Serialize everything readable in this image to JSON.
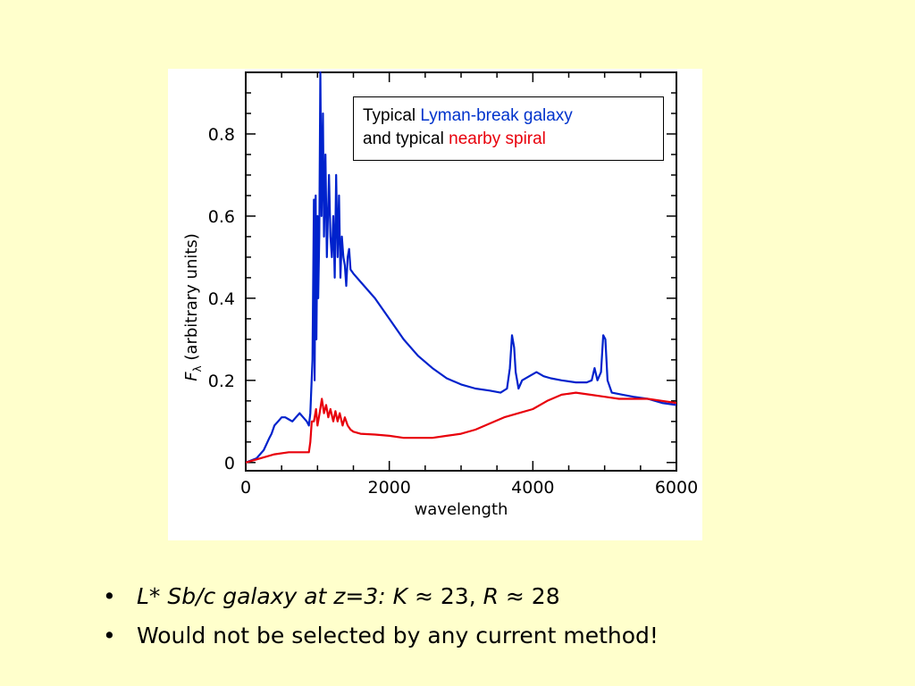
{
  "chart_data": {
    "type": "line",
    "title": "",
    "xlabel": "wavelength",
    "ylabel": "F_λ (arbitrary units)",
    "ylabel_main": "F",
    "ylabel_sub": "λ",
    "ylabel_rest": "(arbitrary units)",
    "xlim": [
      0,
      6000
    ],
    "ylim": [
      -0.02,
      0.95
    ],
    "x_ticks": [
      0,
      2000,
      4000,
      6000
    ],
    "x_tick_labels": [
      "0",
      "2000",
      "4000",
      "6000"
    ],
    "y_ticks": [
      0,
      0.2,
      0.4,
      0.6,
      0.8
    ],
    "y_tick_labels": [
      "0",
      "0.2",
      "0.4",
      "0.6",
      "0.8"
    ],
    "grid": false,
    "legend": {
      "placement": "top-right",
      "line1_prefix": "Typical ",
      "line1_colored": "Lyman-break galaxy",
      "line2_prefix": "and typical ",
      "line2_colored": "nearby spiral"
    },
    "series": [
      {
        "name": "Lyman-break galaxy",
        "color": "#0022cc",
        "points": [
          [
            0,
            0
          ],
          [
            150,
            0.01
          ],
          [
            250,
            0.03
          ],
          [
            330,
            0.06
          ],
          [
            360,
            0.07
          ],
          [
            400,
            0.09
          ],
          [
            450,
            0.1
          ],
          [
            500,
            0.11
          ],
          [
            550,
            0.11
          ],
          [
            600,
            0.105
          ],
          [
            650,
            0.1
          ],
          [
            700,
            0.11
          ],
          [
            750,
            0.12
          ],
          [
            800,
            0.11
          ],
          [
            850,
            0.1
          ],
          [
            880,
            0.09
          ],
          [
            900,
            0.12
          ],
          [
            930,
            0.25
          ],
          [
            950,
            0.64
          ],
          [
            960,
            0.2
          ],
          [
            975,
            0.65
          ],
          [
            985,
            0.3
          ],
          [
            1000,
            0.6
          ],
          [
            1010,
            0.4
          ],
          [
            1025,
            0.55
          ],
          [
            1040,
            0.95
          ],
          [
            1055,
            0.6
          ],
          [
            1075,
            0.85
          ],
          [
            1090,
            0.55
          ],
          [
            1110,
            0.75
          ],
          [
            1130,
            0.5
          ],
          [
            1160,
            0.7
          ],
          [
            1180,
            0.55
          ],
          [
            1200,
            0.5
          ],
          [
            1220,
            0.6
          ],
          [
            1240,
            0.45
          ],
          [
            1260,
            0.7
          ],
          [
            1280,
            0.5
          ],
          [
            1300,
            0.65
          ],
          [
            1320,
            0.45
          ],
          [
            1340,
            0.55
          ],
          [
            1360,
            0.5
          ],
          [
            1380,
            0.48
          ],
          [
            1400,
            0.43
          ],
          [
            1420,
            0.5
          ],
          [
            1440,
            0.52
          ],
          [
            1460,
            0.47
          ],
          [
            1500,
            0.46
          ],
          [
            1600,
            0.44
          ],
          [
            1800,
            0.4
          ],
          [
            2000,
            0.35
          ],
          [
            2200,
            0.3
          ],
          [
            2400,
            0.26
          ],
          [
            2600,
            0.23
          ],
          [
            2800,
            0.205
          ],
          [
            3000,
            0.19
          ],
          [
            3200,
            0.18
          ],
          [
            3400,
            0.175
          ],
          [
            3550,
            0.17
          ],
          [
            3640,
            0.18
          ],
          [
            3680,
            0.23
          ],
          [
            3710,
            0.31
          ],
          [
            3740,
            0.28
          ],
          [
            3760,
            0.22
          ],
          [
            3800,
            0.18
          ],
          [
            3850,
            0.2
          ],
          [
            3950,
            0.21
          ],
          [
            4050,
            0.22
          ],
          [
            4150,
            0.21
          ],
          [
            4250,
            0.205
          ],
          [
            4400,
            0.2
          ],
          [
            4600,
            0.195
          ],
          [
            4750,
            0.195
          ],
          [
            4820,
            0.2
          ],
          [
            4860,
            0.23
          ],
          [
            4900,
            0.2
          ],
          [
            4950,
            0.22
          ],
          [
            4980,
            0.31
          ],
          [
            5010,
            0.3
          ],
          [
            5040,
            0.2
          ],
          [
            5100,
            0.17
          ],
          [
            5250,
            0.165
          ],
          [
            5400,
            0.16
          ],
          [
            5600,
            0.155
          ],
          [
            5800,
            0.145
          ],
          [
            6000,
            0.14
          ]
        ]
      },
      {
        "name": "nearby spiral",
        "color": "#e8000b",
        "points": [
          [
            0,
            0
          ],
          [
            200,
            0.01
          ],
          [
            400,
            0.02
          ],
          [
            600,
            0.025
          ],
          [
            800,
            0.025
          ],
          [
            880,
            0.025
          ],
          [
            900,
            0.05
          ],
          [
            920,
            0.1
          ],
          [
            950,
            0.1
          ],
          [
            980,
            0.13
          ],
          [
            1000,
            0.09
          ],
          [
            1030,
            0.12
          ],
          [
            1060,
            0.155
          ],
          [
            1090,
            0.12
          ],
          [
            1120,
            0.14
          ],
          [
            1150,
            0.11
          ],
          [
            1180,
            0.13
          ],
          [
            1220,
            0.1
          ],
          [
            1250,
            0.125
          ],
          [
            1280,
            0.1
          ],
          [
            1310,
            0.12
          ],
          [
            1350,
            0.09
          ],
          [
            1380,
            0.11
          ],
          [
            1420,
            0.09
          ],
          [
            1460,
            0.08
          ],
          [
            1500,
            0.075
          ],
          [
            1600,
            0.07
          ],
          [
            1800,
            0.068
          ],
          [
            2000,
            0.065
          ],
          [
            2200,
            0.06
          ],
          [
            2400,
            0.06
          ],
          [
            2600,
            0.06
          ],
          [
            2800,
            0.065
          ],
          [
            3000,
            0.07
          ],
          [
            3200,
            0.08
          ],
          [
            3400,
            0.095
          ],
          [
            3600,
            0.11
          ],
          [
            3800,
            0.12
          ],
          [
            4000,
            0.13
          ],
          [
            4200,
            0.15
          ],
          [
            4400,
            0.165
          ],
          [
            4600,
            0.17
          ],
          [
            4800,
            0.165
          ],
          [
            5000,
            0.16
          ],
          [
            5200,
            0.155
          ],
          [
            5400,
            0.155
          ],
          [
            5600,
            0.155
          ],
          [
            5800,
            0.15
          ],
          [
            6000,
            0.145
          ]
        ]
      }
    ]
  },
  "bullets": {
    "marker": "•",
    "item1": {
      "prefix": "L* Sb/c galaxy at z=3: ",
      "k": "K",
      "k_value": " ≈ 23, ",
      "r": "R",
      "r_value": "  ≈ 28"
    },
    "item2": "Would not be selected by any current method!"
  }
}
